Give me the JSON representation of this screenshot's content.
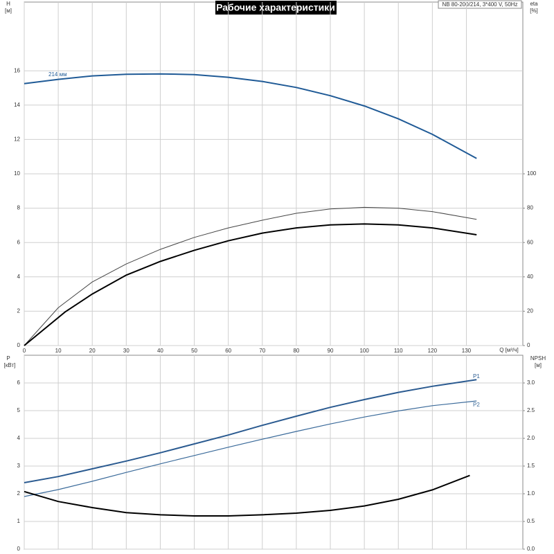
{
  "chart_data": [
    {
      "type": "line",
      "title": "Рабочие характеристики",
      "subtitle": "NB 80-200/214, 3*400 V, 50Hz",
      "x_label": "Q [м³/ч]",
      "y_label": "H",
      "y_unit": "[м]",
      "y2_label": "eta",
      "y2_unit": "[%]",
      "xlim": [
        0,
        146.6
      ],
      "xticks": [
        0,
        10,
        20,
        30,
        40,
        50,
        60,
        70,
        80,
        90,
        100,
        110,
        120,
        130
      ],
      "ylim": [
        0,
        20
      ],
      "yticks": [
        0,
        2,
        4,
        6,
        8,
        10,
        12,
        14,
        16
      ],
      "y2lim": [
        0,
        200
      ],
      "y2ticks": [
        0,
        20,
        40,
        60,
        80,
        100
      ],
      "grid": true,
      "series": [
        {
          "name": "214 мм",
          "color": "#1f5a96",
          "x": [
            0,
            10,
            20,
            30,
            40,
            50,
            60,
            70,
            80,
            90,
            100,
            110,
            120,
            133
          ],
          "values": [
            15.25,
            15.5,
            15.7,
            15.8,
            15.82,
            15.78,
            15.62,
            15.38,
            15.03,
            14.55,
            13.95,
            13.2,
            12.3,
            10.9
          ]
        },
        {
          "color": "#444444",
          "axis": "y2",
          "x": [
            0,
            10,
            20,
            30,
            40,
            50,
            60,
            70,
            80,
            90,
            100,
            110,
            120,
            133
          ],
          "values": [
            0,
            22,
            37,
            47.5,
            56,
            63,
            68.5,
            73,
            77,
            79.5,
            80.5,
            80,
            78,
            73.5
          ]
        },
        {
          "color": "#000000",
          "axis": "y2",
          "x": [
            0,
            12,
            20,
            30,
            40,
            50,
            60,
            70,
            80,
            90,
            100,
            110,
            120,
            133
          ],
          "values": [
            0,
            19.5,
            30,
            41,
            49,
            55.5,
            61,
            65.5,
            68.5,
            70.3,
            70.8,
            70.3,
            68.5,
            64.5
          ]
        }
      ]
    },
    {
      "type": "line",
      "y_label": "P",
      "y_unit": "[кВт]",
      "y2_label": "NPSH",
      "y2_unit": "[м]",
      "xlim": [
        0,
        146.6
      ],
      "ylim": [
        0,
        7
      ],
      "yticks": [
        0,
        1,
        2,
        3,
        4,
        5,
        6
      ],
      "y2lim": [
        0,
        3.5
      ],
      "y2ticks": [
        {
          "value": 0,
          "label": "0.0"
        },
        0.5,
        {
          "value": 1,
          "label": "1.0"
        },
        1.5,
        {
          "value": 2,
          "label": "2.0"
        },
        2.5,
        {
          "value": 3,
          "label": "3.0"
        }
      ],
      "grid": true,
      "series": [
        {
          "name": "P1",
          "color": "#2a5a90",
          "x": [
            0,
            10,
            20,
            30,
            40,
            50,
            60,
            70,
            80,
            90,
            100,
            110,
            120,
            133
          ],
          "values": [
            2.4,
            2.62,
            2.9,
            3.18,
            3.48,
            3.8,
            4.12,
            4.47,
            4.8,
            5.12,
            5.4,
            5.66,
            5.88,
            6.12
          ]
        },
        {
          "name": "P2",
          "color": "#3a6a9a",
          "x": [
            0,
            10,
            20,
            30,
            40,
            50,
            60,
            70,
            80,
            90,
            100,
            110,
            120,
            133
          ],
          "values": [
            1.9,
            2.15,
            2.45,
            2.77,
            3.08,
            3.38,
            3.68,
            3.97,
            4.25,
            4.52,
            4.77,
            4.99,
            5.18,
            5.35
          ]
        },
        {
          "color": "#000000",
          "axis": "y2",
          "x": [
            0,
            10,
            20,
            30,
            40,
            50,
            60,
            70,
            80,
            90,
            100,
            110,
            120,
            131
          ],
          "values": [
            1.04,
            0.86,
            0.75,
            0.66,
            0.62,
            0.6,
            0.6,
            0.62,
            0.65,
            0.7,
            0.78,
            0.9,
            1.07,
            1.33
          ]
        }
      ]
    }
  ]
}
